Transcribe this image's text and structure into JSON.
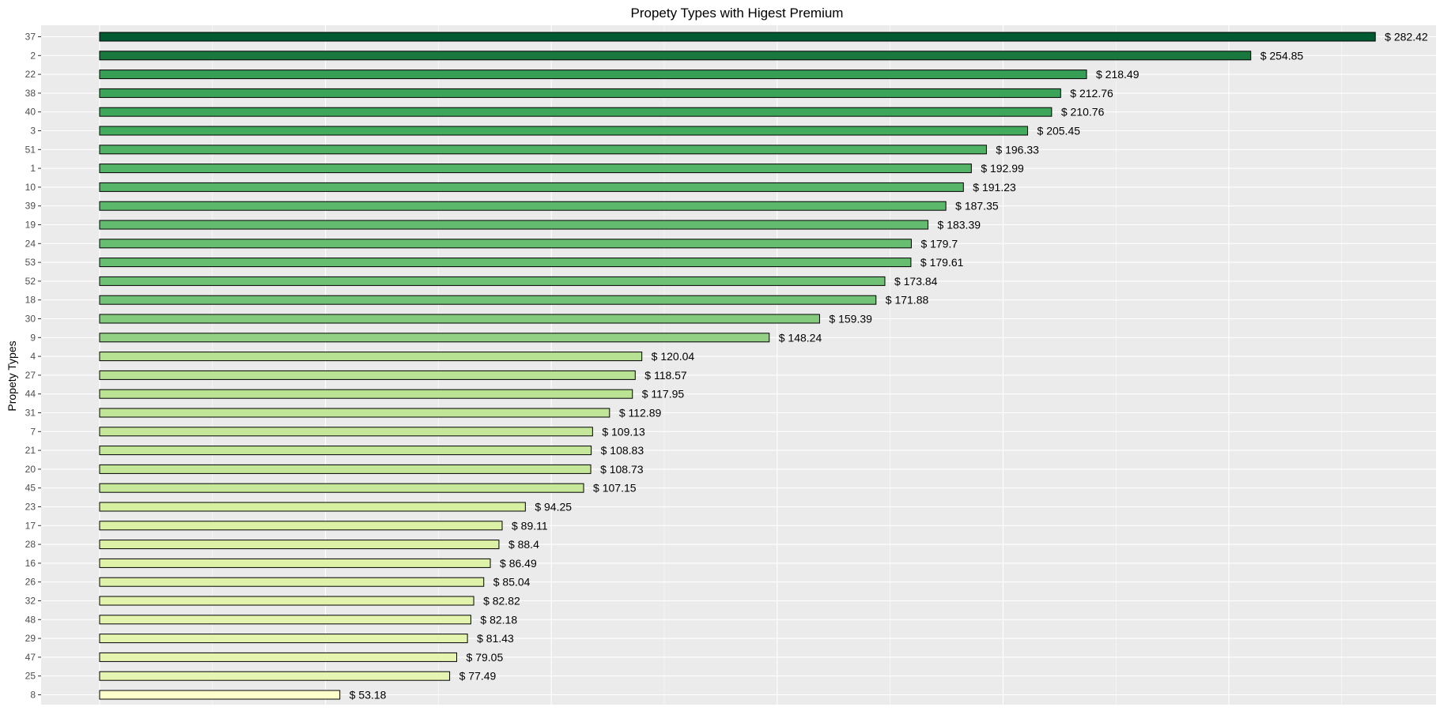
{
  "chart_data": {
    "type": "bar",
    "orientation": "horizontal",
    "title": "Propety Types with Higest Premium",
    "xlabel": "",
    "ylabel": "Propety Types",
    "value_prefix": "$ ",
    "xlim": [
      0,
      290
    ],
    "grid": true,
    "legend": "none",
    "color_scale": {
      "low": "#ffffcc",
      "high": "#005a32"
    },
    "categories": [
      "37",
      "2",
      "22",
      "38",
      "40",
      "3",
      "51",
      "1",
      "10",
      "39",
      "19",
      "24",
      "53",
      "52",
      "18",
      "30",
      "9",
      "4",
      "27",
      "44",
      "31",
      "7",
      "21",
      "20",
      "45",
      "23",
      "17",
      "28",
      "16",
      "26",
      "32",
      "48",
      "29",
      "47",
      "25",
      "8"
    ],
    "values": [
      282.42,
      254.85,
      218.49,
      212.76,
      210.76,
      205.45,
      196.33,
      192.99,
      191.23,
      187.35,
      183.39,
      179.7,
      179.61,
      173.84,
      171.88,
      159.39,
      148.24,
      120.04,
      118.57,
      117.95,
      112.89,
      109.13,
      108.83,
      108.73,
      107.15,
      94.25,
      89.11,
      88.4,
      86.49,
      85.04,
      82.82,
      82.18,
      81.43,
      79.05,
      77.49,
      53.18
    ],
    "data_labels": [
      "$ 282.42",
      "$ 254.85",
      "$ 218.49",
      "$ 212.76",
      "$ 210.76",
      "$ 205.45",
      "$ 196.33",
      "$ 192.99",
      "$ 191.23",
      "$ 187.35",
      "$ 183.39",
      "$ 179.7",
      "$ 179.61",
      "$ 173.84",
      "$ 171.88",
      "$ 159.39",
      "$ 148.24",
      "$ 120.04",
      "$ 118.57",
      "$ 117.95",
      "$ 112.89",
      "$ 109.13",
      "$ 108.83",
      "$ 108.73",
      "$ 107.15",
      "$ 94.25",
      "$ 89.11",
      "$ 88.4",
      "$ 86.49",
      "$ 85.04",
      "$ 82.82",
      "$ 82.18",
      "$ 81.43",
      "$ 79.05",
      "$ 77.49",
      "$ 53.18"
    ]
  }
}
